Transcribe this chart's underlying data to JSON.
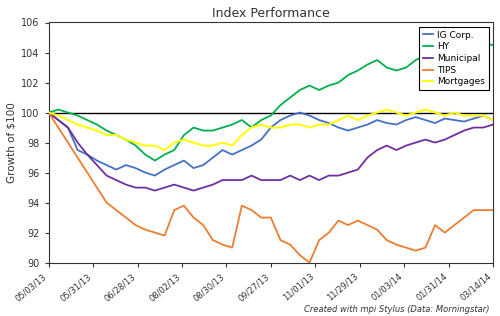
{
  "title": "Index Performance",
  "ylabel": "Growth of $100",
  "footnote": "Created with mpi Stylus (Data: Morningstar)",
  "x_labels": [
    "05/03/13",
    "05/31/13",
    "06/28/13",
    "08/02/13",
    "08/30/13",
    "09/27/13",
    "11/01/13",
    "11/29/13",
    "01/03/14",
    "01/31/14",
    "03/14/14"
  ],
  "ylim": [
    90,
    106
  ],
  "yticks": [
    90,
    92,
    94,
    96,
    98,
    100,
    102,
    104,
    106
  ],
  "series_order": [
    "IG Corp.",
    "HY",
    "Municipal",
    "TIPS",
    "Mortgages"
  ],
  "series": {
    "IG Corp.": {
      "color": "#4472C4",
      "data": [
        100.0,
        99.5,
        99.0,
        97.5,
        97.2,
        96.8,
        96.5,
        96.2,
        96.5,
        96.3,
        96.0,
        95.8,
        96.2,
        96.5,
        96.8,
        96.3,
        96.5,
        97.0,
        97.5,
        97.2,
        97.5,
        97.8,
        98.2,
        99.0,
        99.5,
        99.8,
        100.0,
        99.8,
        99.5,
        99.3,
        99.0,
        98.8,
        99.0,
        99.2,
        99.5,
        99.3,
        99.2,
        99.5,
        99.7,
        99.5,
        99.3,
        99.6,
        99.5,
        99.4,
        99.6,
        99.8,
        99.5
      ]
    },
    "HY": {
      "color": "#00B050",
      "data": [
        100.0,
        100.2,
        100.0,
        99.8,
        99.5,
        99.2,
        98.8,
        98.5,
        98.2,
        97.8,
        97.2,
        96.8,
        97.2,
        97.5,
        98.5,
        99.0,
        98.8,
        98.8,
        99.0,
        99.2,
        99.5,
        99.0,
        99.5,
        99.8,
        100.5,
        101.0,
        101.5,
        101.8,
        101.5,
        101.8,
        102.0,
        102.5,
        102.8,
        103.2,
        103.5,
        103.0,
        102.8,
        103.0,
        103.5,
        103.8,
        103.5,
        104.0,
        104.5,
        104.8,
        104.5,
        104.6,
        104.5
      ]
    },
    "Municipal": {
      "color": "#7030A0",
      "data": [
        100.0,
        99.5,
        99.0,
        98.0,
        97.2,
        96.5,
        95.8,
        95.5,
        95.2,
        95.0,
        95.0,
        94.8,
        95.0,
        95.2,
        95.0,
        94.8,
        95.0,
        95.2,
        95.5,
        95.5,
        95.5,
        95.8,
        95.5,
        95.5,
        95.5,
        95.8,
        95.5,
        95.8,
        95.5,
        95.8,
        95.8,
        96.0,
        96.2,
        97.0,
        97.5,
        97.8,
        97.5,
        97.8,
        98.0,
        98.2,
        98.0,
        98.2,
        98.5,
        98.8,
        99.0,
        99.0,
        99.2
      ]
    },
    "TIPS": {
      "color": "#ED7D31",
      "data": [
        100.0,
        99.0,
        98.0,
        97.0,
        96.0,
        95.0,
        94.0,
        93.5,
        93.0,
        92.5,
        92.2,
        92.0,
        91.8,
        93.5,
        93.8,
        93.0,
        92.5,
        91.5,
        91.2,
        91.0,
        93.8,
        93.5,
        93.0,
        93.0,
        91.5,
        91.2,
        90.5,
        90.0,
        91.5,
        92.0,
        92.8,
        92.5,
        92.8,
        92.5,
        92.2,
        91.5,
        91.2,
        91.0,
        90.8,
        91.0,
        92.5,
        92.0,
        92.5,
        93.0,
        93.5,
        93.5,
        93.5
      ]
    },
    "Mortgages": {
      "color": "#FFFF00",
      "data": [
        100.0,
        99.8,
        99.5,
        99.2,
        99.0,
        98.8,
        98.5,
        98.5,
        98.2,
        98.0,
        97.8,
        97.8,
        97.5,
        98.0,
        98.2,
        98.0,
        97.8,
        97.8,
        98.0,
        97.8,
        98.5,
        99.0,
        99.2,
        99.0,
        99.0,
        99.2,
        99.2,
        99.0,
        99.2,
        99.2,
        99.5,
        99.8,
        99.5,
        99.8,
        100.0,
        100.2,
        100.0,
        99.8,
        100.0,
        100.2,
        100.0,
        99.8,
        100.0,
        99.8,
        99.8,
        99.8,
        99.5
      ]
    }
  },
  "background_color": "#FFFFFF",
  "legend_edgecolor": "#000000",
  "hline_color": "#000000"
}
